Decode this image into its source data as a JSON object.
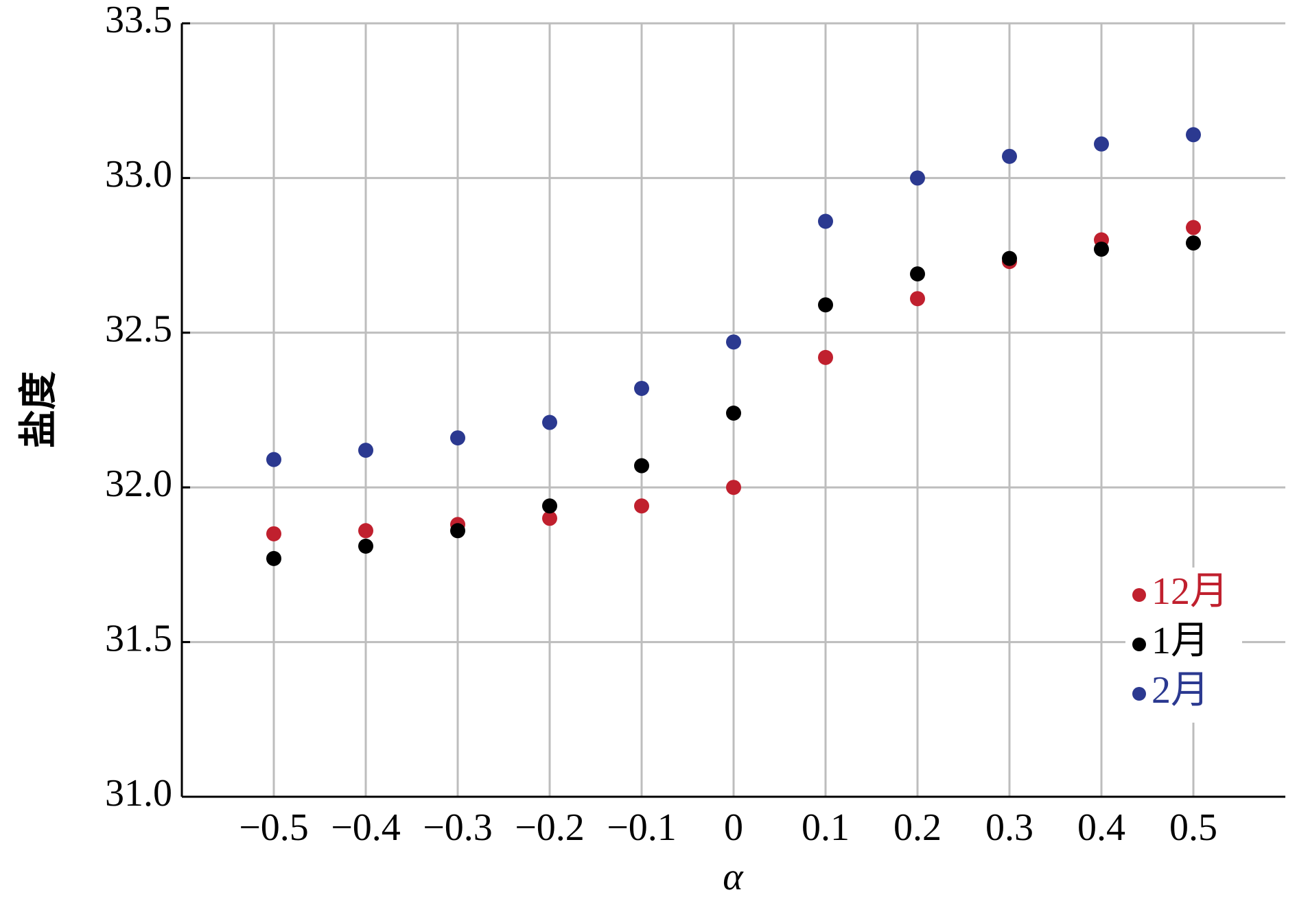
{
  "chart_data": {
    "type": "scatter",
    "xlabel": "α",
    "ylabel": "盐度",
    "x": [
      -0.5,
      -0.4,
      -0.3,
      -0.2,
      -0.1,
      0,
      0.1,
      0.2,
      0.3,
      0.4,
      0.5
    ],
    "series": [
      {
        "name": "12月",
        "color": "#c0202e",
        "values": [
          31.85,
          31.86,
          31.88,
          31.9,
          31.94,
          32.0,
          32.42,
          32.61,
          32.73,
          32.8,
          32.84
        ]
      },
      {
        "name": "1月",
        "color": "#000000",
        "values": [
          31.77,
          31.81,
          31.86,
          31.94,
          32.07,
          32.24,
          32.59,
          32.69,
          32.74,
          32.77,
          32.79
        ]
      },
      {
        "name": "2月",
        "color": "#2b3990",
        "values": [
          32.09,
          32.12,
          32.16,
          32.21,
          32.32,
          32.47,
          32.86,
          33.0,
          33.07,
          33.11,
          33.14
        ]
      }
    ],
    "xlim": [
      -0.6,
      0.6
    ],
    "xticks": [
      {
        "value": -0.5,
        "label": "−0.5"
      },
      {
        "value": -0.4,
        "label": "−0.4"
      },
      {
        "value": -0.3,
        "label": "−0.3"
      },
      {
        "value": -0.2,
        "label": "−0.2"
      },
      {
        "value": -0.1,
        "label": "−0.1"
      },
      0,
      0.1,
      0.2,
      0.3,
      0.4,
      0.5
    ],
    "ylim": [
      31,
      33.5
    ],
    "yticks": [
      {
        "value": 31,
        "label": "31.0"
      },
      31.5,
      {
        "value": 32,
        "label": "32.0"
      },
      32.5,
      {
        "value": 33,
        "label": "33.0"
      },
      33.5
    ],
    "grid": true,
    "legend": "lower right"
  }
}
